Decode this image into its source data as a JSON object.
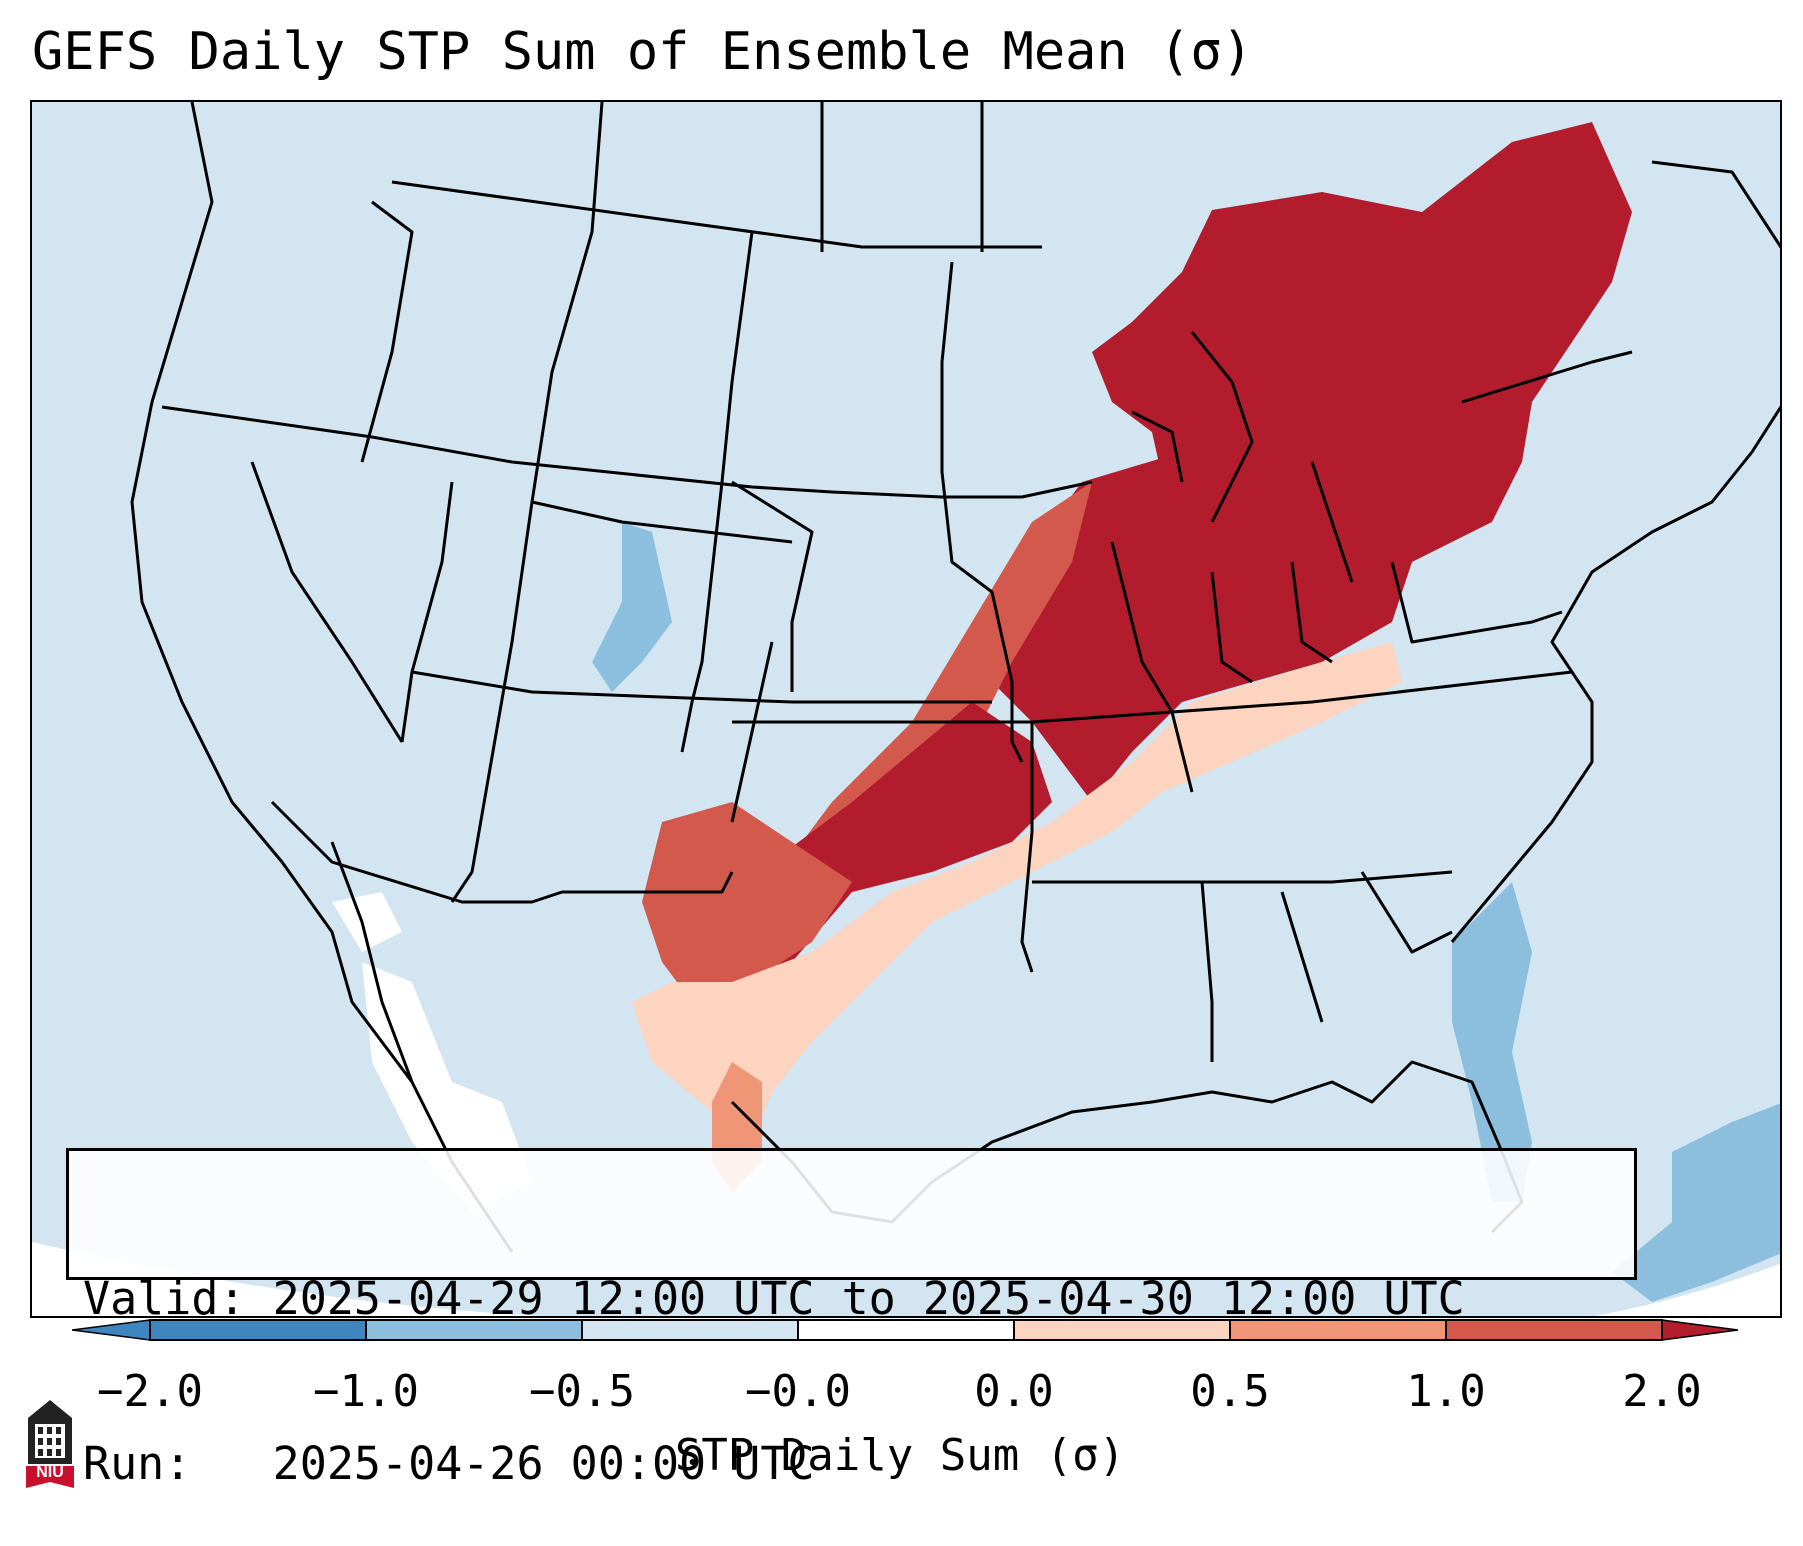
{
  "title": "GEFS Daily STP Sum of Ensemble Mean (σ)",
  "info_box": {
    "valid_label": "Valid:",
    "valid_value": "2025-04-29 12:00 UTC to 2025-04-30 12:00 UTC",
    "run_label": "Run:",
    "run_value": "2025-04-26 00:00 UTC"
  },
  "colorbar": {
    "label": "STP Daily Sum (σ)",
    "ticks": [
      "−2.0",
      "−1.0",
      "−0.5",
      "−0.0",
      "0.0",
      "0.5",
      "1.0",
      "2.0"
    ],
    "colors": [
      "#3f86bf",
      "#8cbfdd",
      "#d2e5f1",
      "#ffffff",
      "#fcd4bf",
      "#ef9677",
      "#d3594c",
      "#b21c2d"
    ],
    "extend": "both"
  },
  "map": {
    "region": "Contiguous United States",
    "fields": [
      {
        "region": "Great Lakes, Ohio Valley, Northeast",
        "category": "2.0",
        "color": "#b21c2d"
      },
      {
        "region": "Missouri / Illinois / Indiana / Ohio",
        "category": "2.0",
        "color": "#b21c2d"
      },
      {
        "region": "Oklahoma / North Texas",
        "category": "1.0–2.0",
        "color": "#b21c2d"
      },
      {
        "region": "Kansas / Arkansas fringe",
        "category": "0.5–1.0",
        "color": "#d3594c"
      },
      {
        "region": "West Texas / Rio Grande",
        "category": "0.0–0.5",
        "color": "#fcd4bf"
      },
      {
        "region": "Southeast Atlantic coast / Bahamas",
        "category": "−1.0–−0.5",
        "color": "#8cbfdd"
      },
      {
        "region": "Southwest / Mexico",
        "category": "−0.0",
        "color": "#ffffff"
      }
    ]
  },
  "logo": {
    "text": "NIU"
  }
}
